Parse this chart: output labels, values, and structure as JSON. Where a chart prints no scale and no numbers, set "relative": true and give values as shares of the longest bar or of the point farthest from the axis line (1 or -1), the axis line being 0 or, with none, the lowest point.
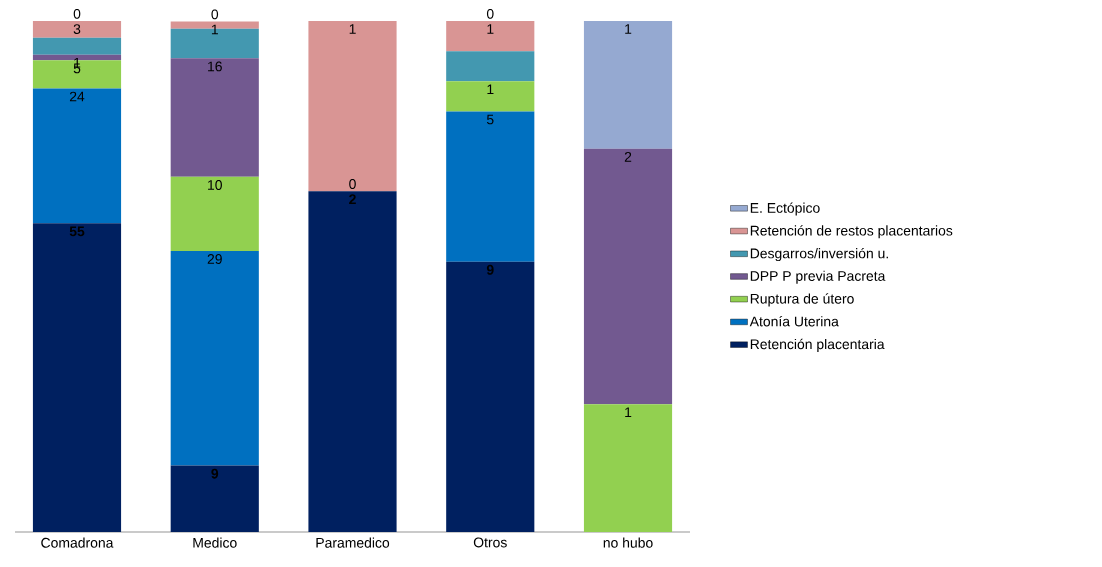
{
  "chart_data": {
    "type": "bar",
    "stacked": true,
    "relative": true,
    "legend": "right",
    "tick_labels": "x",
    "categories": [
      "Comadrona",
      "Medico",
      "Paramedico",
      "Otros",
      "no hubo"
    ],
    "series": [
      {
        "name": "Retención placentaria",
        "color": "#002060",
        "values": [
          0.604,
          0.13,
          0.667,
          0.529,
          0
        ]
      },
      {
        "name": "Atonía Uterina",
        "color": "#0070c0",
        "values": [
          0.264,
          0.42,
          0,
          0.294,
          0
        ]
      },
      {
        "name": "Ruptura de útero",
        "color": "#92d050",
        "values": [
          0.055,
          0.145,
          0,
          0.059,
          0.25
        ]
      },
      {
        "name": "DPP P previa Pacreta",
        "color": "#725990",
        "values": [
          0.011,
          0.232,
          0,
          0,
          0.5
        ]
      },
      {
        "name": "Desgarros/inversión u.",
        "color": "#4398b0",
        "values": [
          0.033,
          0.058,
          0,
          0.059,
          0
        ]
      },
      {
        "name": "Retención de restos placentarios",
        "color": "#d99594",
        "values": [
          0.033,
          0.014,
          0.333,
          0.059,
          0
        ]
      },
      {
        "name": "E. Ectópico",
        "color": "#95a9d1",
        "values": [
          0,
          0,
          0,
          0,
          0.25
        ]
      }
    ],
    "annotations": [
      {
        "text": "55",
        "x": "Comadrona",
        "y": 0.604
      },
      {
        "text": "24",
        "x": "Comadrona",
        "y": 0.868
      },
      {
        "text": "5",
        "x": "Comadrona",
        "y": 0.923
      },
      {
        "text": "1",
        "x": "Comadrona",
        "y": 0.934
      },
      {
        "text": "3",
        "x": "Comadrona",
        "y": 1.0
      },
      {
        "text": "0",
        "x": "Comadrona",
        "y": 1.0
      },
      {
        "text": "9",
        "x": "Medico",
        "y": 0.13
      },
      {
        "text": "29",
        "x": "Medico",
        "y": 0.55
      },
      {
        "text": "10",
        "x": "Medico",
        "y": 0.695
      },
      {
        "text": "16",
        "x": "Medico",
        "y": 0.927
      },
      {
        "text": "1",
        "x": "Medico",
        "y": 0.999
      },
      {
        "text": "0",
        "x": "Medico",
        "y": 0.999
      },
      {
        "text": "2",
        "x": "Paramedico",
        "y": 0.667
      },
      {
        "text": "0",
        "x": "Paramedico",
        "y": 0.667
      },
      {
        "text": "1",
        "x": "Paramedico",
        "y": 1.0
      },
      {
        "text": "9",
        "x": "Otros",
        "y": 0.529
      },
      {
        "text": "5",
        "x": "Otros",
        "y": 0.823
      },
      {
        "text": "1",
        "x": "Otros",
        "y": 0.882
      },
      {
        "text": "1",
        "x": "Otros",
        "y": 1.0
      },
      {
        "text": "0",
        "x": "Otros",
        "y": 1.0
      },
      {
        "text": "1",
        "x": "no hubo",
        "y": 0.25
      },
      {
        "text": "2",
        "x": "no hubo",
        "y": 0.75
      },
      {
        "text": "1",
        "x": "no hubo",
        "y": 1.0
      }
    ]
  }
}
